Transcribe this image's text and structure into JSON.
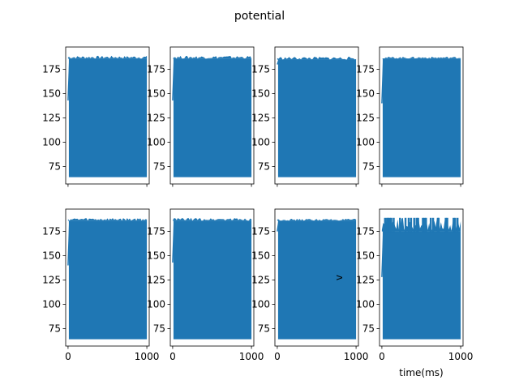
{
  "figure": {
    "title": "potential"
  },
  "chart_data": [
    {
      "type": "line",
      "row": 1,
      "col": 1,
      "title": "",
      "xlabel": "",
      "ylabel": "",
      "xlim": [
        -30,
        1030
      ],
      "ylim": [
        57,
        198
      ],
      "grid": false,
      "x_ticks": [
        0,
        1000
      ],
      "x_tick_labels_visible": false,
      "y_ticks": [
        75,
        100,
        125,
        150,
        175
      ],
      "y_tick_labels": [
        "75",
        "100",
        "125",
        "150",
        "175"
      ],
      "series": [
        {
          "color": "#1f77b4",
          "x": [
            0,
            1000
          ],
          "y_min": 64,
          "y_max": 189,
          "y_top_level": 186,
          "y_start": 143
        }
      ]
    },
    {
      "type": "line",
      "row": 1,
      "col": 2,
      "title": "",
      "xlabel": "",
      "ylabel": "",
      "xlim": [
        -30,
        1030
      ],
      "ylim": [
        57,
        198
      ],
      "grid": false,
      "x_ticks": [
        0,
        1000
      ],
      "x_tick_labels_visible": false,
      "y_ticks": [
        75,
        100,
        125,
        150,
        175
      ],
      "y_tick_labels": [
        "75",
        "100",
        "125",
        "150",
        "175"
      ],
      "series": [
        {
          "color": "#1f77b4",
          "x": [
            0,
            1000
          ],
          "y_min": 64,
          "y_max": 189,
          "y_top_level": 186,
          "y_start": 143
        }
      ]
    },
    {
      "type": "line",
      "row": 1,
      "col": 3,
      "title": "",
      "xlabel": "",
      "ylabel": "",
      "xlim": [
        -30,
        1030
      ],
      "ylim": [
        57,
        198
      ],
      "grid": false,
      "x_ticks": [
        0,
        1000
      ],
      "x_tick_labels_visible": false,
      "y_ticks": [
        75,
        100,
        125,
        150,
        175
      ],
      "y_tick_labels": [
        "75",
        "100",
        "125",
        "150",
        "175"
      ],
      "series": [
        {
          "color": "#1f77b4",
          "x": [
            0,
            1000
          ],
          "y_min": 64,
          "y_max": 188,
          "y_top_level": 185,
          "y_start": 180
        }
      ]
    },
    {
      "type": "line",
      "row": 1,
      "col": 4,
      "title": "",
      "xlabel": "",
      "ylabel": "",
      "xlim": [
        -30,
        1030
      ],
      "ylim": [
        57,
        198
      ],
      "grid": false,
      "x_ticks": [
        0,
        1000
      ],
      "x_tick_labels_visible": false,
      "y_ticks": [
        75,
        100,
        125,
        150,
        175
      ],
      "y_tick_labels": [
        "75",
        "100",
        "125",
        "150",
        "175"
      ],
      "series": [
        {
          "color": "#1f77b4",
          "x": [
            0,
            1000
          ],
          "y_min": 64,
          "y_max": 188,
          "y_top_level": 186,
          "y_start": 140
        }
      ]
    },
    {
      "type": "line",
      "row": 2,
      "col": 1,
      "title": "",
      "xlabel": "",
      "ylabel": "",
      "xlim": [
        -30,
        1030
      ],
      "ylim": [
        57,
        198
      ],
      "grid": false,
      "x_ticks": [
        0,
        1000
      ],
      "x_tick_labels": [
        "0",
        "1000"
      ],
      "y_ticks": [
        75,
        100,
        125,
        150,
        175
      ],
      "y_tick_labels": [
        "75",
        "100",
        "125",
        "150",
        "175"
      ],
      "series": [
        {
          "color": "#1f77b4",
          "x": [
            0,
            1000
          ],
          "y_min": 64,
          "y_max": 189,
          "y_top_level": 186,
          "y_start": 140
        }
      ]
    },
    {
      "type": "line",
      "row": 2,
      "col": 2,
      "title": "",
      "xlabel": "",
      "ylabel": "",
      "xlim": [
        -30,
        1030
      ],
      "ylim": [
        57,
        198
      ],
      "grid": false,
      "x_ticks": [
        0,
        1000
      ],
      "x_tick_labels": [
        "0",
        "1000"
      ],
      "y_ticks": [
        75,
        100,
        125,
        150,
        175
      ],
      "y_tick_labels": [
        "75",
        "100",
        "125",
        "150",
        "175"
      ],
      "series": [
        {
          "color": "#1f77b4",
          "x": [
            0,
            1000
          ],
          "y_min": 64,
          "y_max": 189,
          "y_top_level": 186,
          "y_start": 143
        }
      ]
    },
    {
      "type": "line",
      "row": 2,
      "col": 3,
      "title": "",
      "xlabel": "",
      "ylabel": "",
      "xlim": [
        -30,
        1030
      ],
      "ylim": [
        57,
        198
      ],
      "grid": false,
      "x_ticks": [
        0,
        1000
      ],
      "x_tick_labels": [
        "0",
        "1000"
      ],
      "y_ticks": [
        75,
        100,
        125,
        150,
        175
      ],
      "y_tick_labels": [
        "75",
        "100",
        "125",
        "150",
        "175"
      ],
      "series": [
        {
          "color": "#1f77b4",
          "x": [
            0,
            1000
          ],
          "y_min": 64,
          "y_max": 188,
          "y_top_level": 186,
          "y_start": 175
        }
      ]
    },
    {
      "type": "line",
      "row": 2,
      "col": 4,
      "title": "",
      "xlabel": "time(ms)",
      "ylabel": "v",
      "xlim": [
        -30,
        1030
      ],
      "ylim": [
        57,
        198
      ],
      "grid": false,
      "x_ticks": [
        0,
        1000
      ],
      "x_tick_labels": [
        "0",
        "1000"
      ],
      "y_ticks": [
        75,
        100,
        125,
        150,
        175
      ],
      "y_tick_labels": [
        "75",
        "100",
        "125",
        "150",
        "175"
      ],
      "series": [
        {
          "color": "#1f77b4",
          "x": [
            0,
            1000
          ],
          "y_min": 64,
          "y_max": 189,
          "y_top_level": 175,
          "y_start": 128,
          "spikes_x": [
            40,
            65,
            80,
            100,
            120,
            150,
            230,
            300,
            340,
            370,
            410,
            440,
            460,
            520,
            540,
            560,
            620,
            650,
            710,
            720,
            810,
            830,
            910,
            930,
            960
          ]
        }
      ]
    }
  ]
}
